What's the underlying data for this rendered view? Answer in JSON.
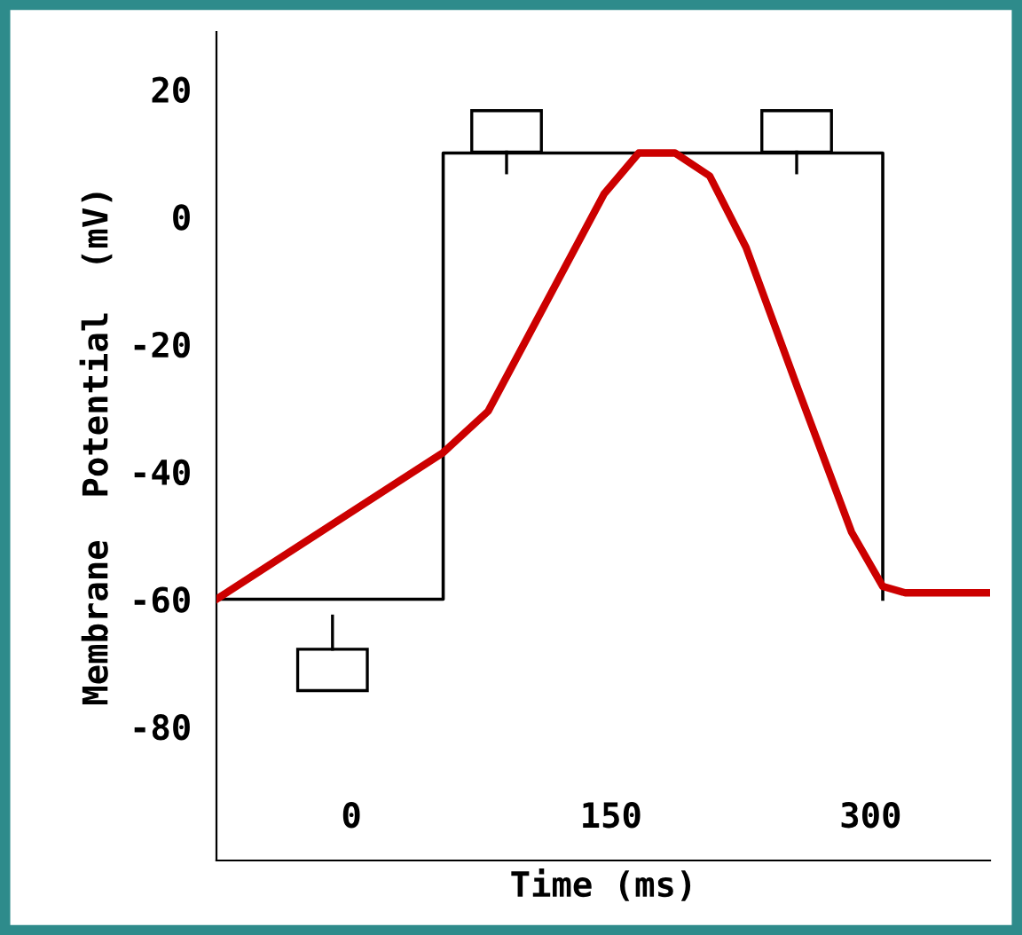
{
  "chart_data": {
    "type": "line",
    "xlabel": "Time (ms)",
    "ylabel": "Membrane  Potential  (mV)",
    "xlim": [
      -78,
      369
    ],
    "ylim": [
      -101,
      29
    ],
    "xticks": [
      0,
      150,
      300
    ],
    "yticks": [
      20,
      0,
      -20,
      -40,
      -60,
      -80
    ],
    "grid": false,
    "marker": "none",
    "line_style": "solid",
    "series": [
      {
        "color": "#000000",
        "x": [
          -78,
          53,
          53,
          307,
          307
        ],
        "values": [
          -60,
          -60,
          10,
          10,
          -60
        ]
      },
      {
        "color": "#cc0000",
        "x": [
          -78,
          53,
          79,
          146,
          166,
          187,
          207,
          228,
          258,
          289,
          307,
          320,
          369
        ],
        "values": [
          -60,
          -37,
          -30.5,
          3.6,
          10,
          10,
          6.4,
          -4.8,
          -27,
          -49.5,
          -58,
          -59,
          -59
        ]
      }
    ]
  }
}
